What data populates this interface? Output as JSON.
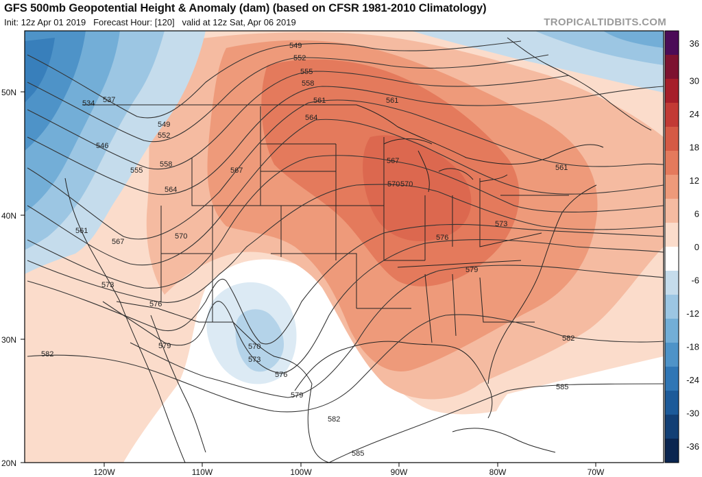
{
  "header": {
    "title": "GFS 500mb Geopotential Height & Anomaly (dam) (based on CFSR 1981-2010 Climatology)",
    "init_label": "Init: 12z Apr 01 2019",
    "forecast_label": "Forecast Hour: [120]",
    "valid_label": "valid at 12z Sat, Apr 06 2019",
    "brand": "TROPICALTIDBITS.COM"
  },
  "axes": {
    "lat_labels": [
      "50N",
      "40N",
      "30N",
      "20N"
    ],
    "lon_labels": [
      "120W",
      "110W",
      "100W",
      "90W",
      "80W",
      "70W"
    ]
  },
  "colorbar": {
    "labels": [
      "36",
      "30",
      "24",
      "18",
      "12",
      "6",
      "0",
      "-6",
      "-12",
      "-18",
      "-24",
      "-30",
      "-36"
    ],
    "colors": [
      "#4b0b57",
      "#7d1230",
      "#a61e2a",
      "#c23a35",
      "#d55a45",
      "#e47a5c",
      "#ee9a7a",
      "#f5bba1",
      "#fbdccb",
      "#ffffff",
      "#c5dcec",
      "#9cc6e3",
      "#73aed7",
      "#4e93c8",
      "#2f76b5",
      "#1c5a99",
      "#123f75",
      "#0a2550"
    ]
  },
  "contour_labels": [
    {
      "text": "534"
    },
    {
      "text": "537"
    },
    {
      "text": "546"
    },
    {
      "text": "549"
    },
    {
      "text": "552"
    },
    {
      "text": "555"
    },
    {
      "text": "558"
    },
    {
      "text": "561"
    },
    {
      "text": "564"
    },
    {
      "text": "567"
    },
    {
      "text": "570"
    },
    {
      "text": "573"
    },
    {
      "text": "576"
    },
    {
      "text": "579"
    },
    {
      "text": "582"
    },
    {
      "text": "585"
    },
    {
      "text": "549"
    },
    {
      "text": "552"
    },
    {
      "text": "555"
    },
    {
      "text": "558"
    },
    {
      "text": "561"
    },
    {
      "text": "564"
    },
    {
      "text": "567"
    },
    {
      "text": "570"
    },
    {
      "text": "573"
    },
    {
      "text": "576"
    },
    {
      "text": "579"
    },
    {
      "text": "582"
    },
    {
      "text": "585"
    },
    {
      "text": "570"
    },
    {
      "text": "573"
    },
    {
      "text": "576"
    },
    {
      "text": "579"
    },
    {
      "text": "582"
    },
    {
      "text": "561"
    },
    {
      "text": "567"
    },
    {
      "text": "570"
    },
    {
      "text": "561"
    }
  ]
}
